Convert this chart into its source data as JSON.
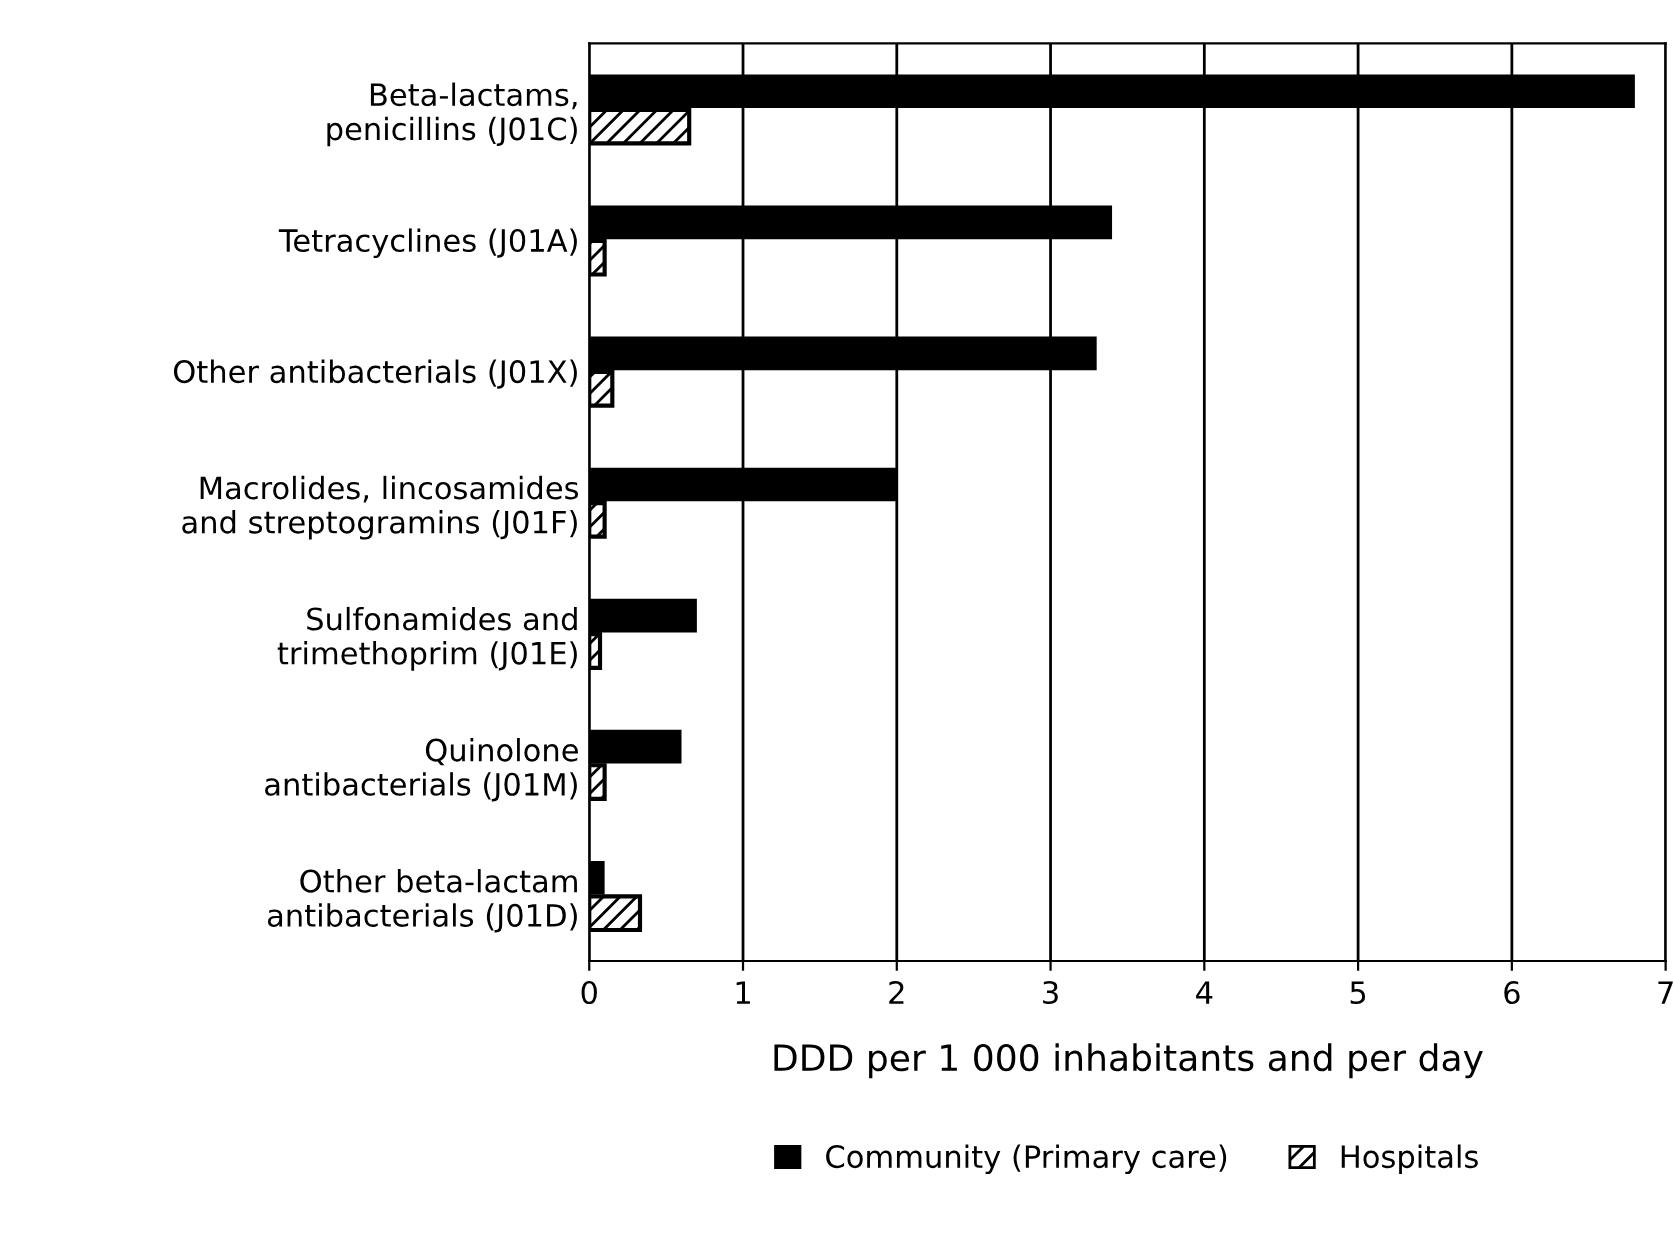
{
  "chart_data": {
    "type": "bar",
    "orientation": "horizontal",
    "xlabel": "DDD per 1 000 inhabitants and per day",
    "categories": [
      "Beta-lactams,\npenicillins (J01C)",
      "Tetracyclines (J01A)",
      "Other antibacterials (J01X)",
      "Macrolides, lincosamides\nand streptogramins (J01F)",
      "Sulfonamides and\ntrimethoprim (J01E)",
      "Quinolone\nantibacterials (J01M)",
      "Other beta-lactam\nantibacterials (J01D)"
    ],
    "series": [
      {
        "name": "Community (Primary care)",
        "color": "#000000",
        "values": [
          6.8,
          3.4,
          3.3,
          2.0,
          0.7,
          0.6,
          0.1
        ]
      },
      {
        "name": "Hospitals",
        "color": "#000000",
        "values": [
          0.65,
          0.1,
          0.15,
          0.1,
          0.07,
          0.1,
          0.33
        ]
      }
    ],
    "xlim": [
      0,
      7
    ],
    "xticks": [
      0,
      1,
      2,
      3,
      4,
      5,
      6,
      7
    ],
    "grid": "x",
    "legend": "bottom"
  }
}
